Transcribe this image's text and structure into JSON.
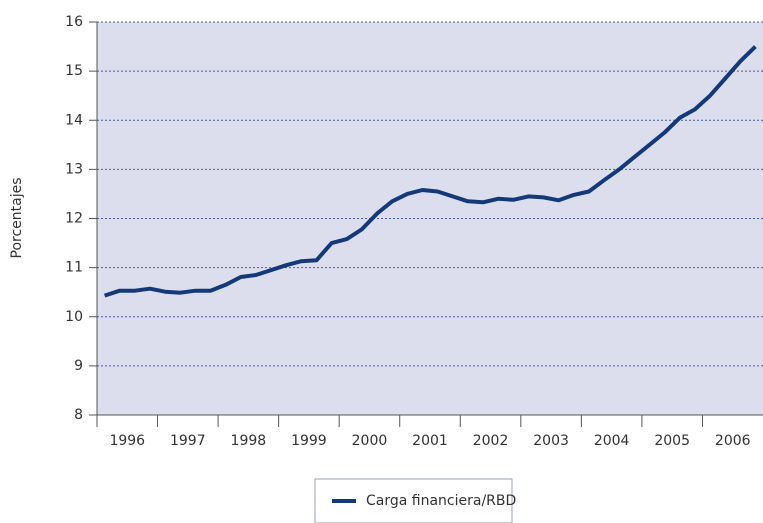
{
  "chart_data": {
    "type": "line",
    "y_label": "Porcentajes",
    "x": [
      1996.125,
      1996.375,
      1996.625,
      1996.875,
      1997.125,
      1997.375,
      1997.625,
      1997.875,
      1998.125,
      1998.375,
      1998.625,
      1998.875,
      1999.125,
      1999.375,
      1999.625,
      1999.875,
      2000.125,
      2000.375,
      2000.625,
      2000.875,
      2001.125,
      2001.375,
      2001.625,
      2001.875,
      2002.125,
      2002.375,
      2002.625,
      2002.875,
      2003.125,
      2003.375,
      2003.625,
      2003.875,
      2004.125,
      2004.375,
      2004.625,
      2004.875,
      2005.125,
      2005.375,
      2005.625,
      2005.875,
      2006.125,
      2006.375,
      2006.625,
      2006.875
    ],
    "series": [
      {
        "name": "Carga financiera/RBD",
        "color": "#14397a",
        "values": [
          10.43,
          10.53,
          10.53,
          10.57,
          10.51,
          10.49,
          10.53,
          10.53,
          10.65,
          10.81,
          10.85,
          10.95,
          11.05,
          11.13,
          11.15,
          11.5,
          11.58,
          11.78,
          12.1,
          12.35,
          12.5,
          12.58,
          12.55,
          12.45,
          12.35,
          12.33,
          12.4,
          12.38,
          12.45,
          12.43,
          12.37,
          12.48,
          12.55,
          12.78,
          13.0,
          13.25,
          13.5,
          13.75,
          14.05,
          14.22,
          14.5,
          14.85,
          15.2,
          15.5
        ]
      }
    ],
    "xlim": [
      1996,
      2007
    ],
    "xticks": [
      {
        "value": 1996.5,
        "label": "1996"
      },
      {
        "value": 1997.5,
        "label": "1997"
      },
      {
        "value": 1998.5,
        "label": "1998"
      },
      {
        "value": 1999.5,
        "label": "1999"
      },
      {
        "value": 2000.5,
        "label": "2000"
      },
      {
        "value": 2001.5,
        "label": "2001"
      },
      {
        "value": 2002.5,
        "label": "2002"
      },
      {
        "value": 2003.5,
        "label": "2003"
      },
      {
        "value": 2004.5,
        "label": "2004"
      },
      {
        "value": 2005.5,
        "label": "2005"
      },
      {
        "value": 2006.5,
        "label": "2006"
      }
    ],
    "ylim": [
      8,
      16
    ],
    "yticks": [
      8,
      9,
      10,
      11,
      12,
      13,
      14,
      15,
      16
    ],
    "grid": true
  }
}
